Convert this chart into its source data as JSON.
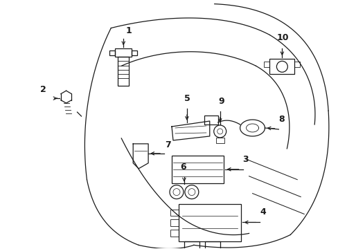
{
  "bg_color": "#ffffff",
  "line_color": "#1a1a1a",
  "fig_width": 4.89,
  "fig_height": 3.6,
  "dpi": 100,
  "lw": 0.9
}
